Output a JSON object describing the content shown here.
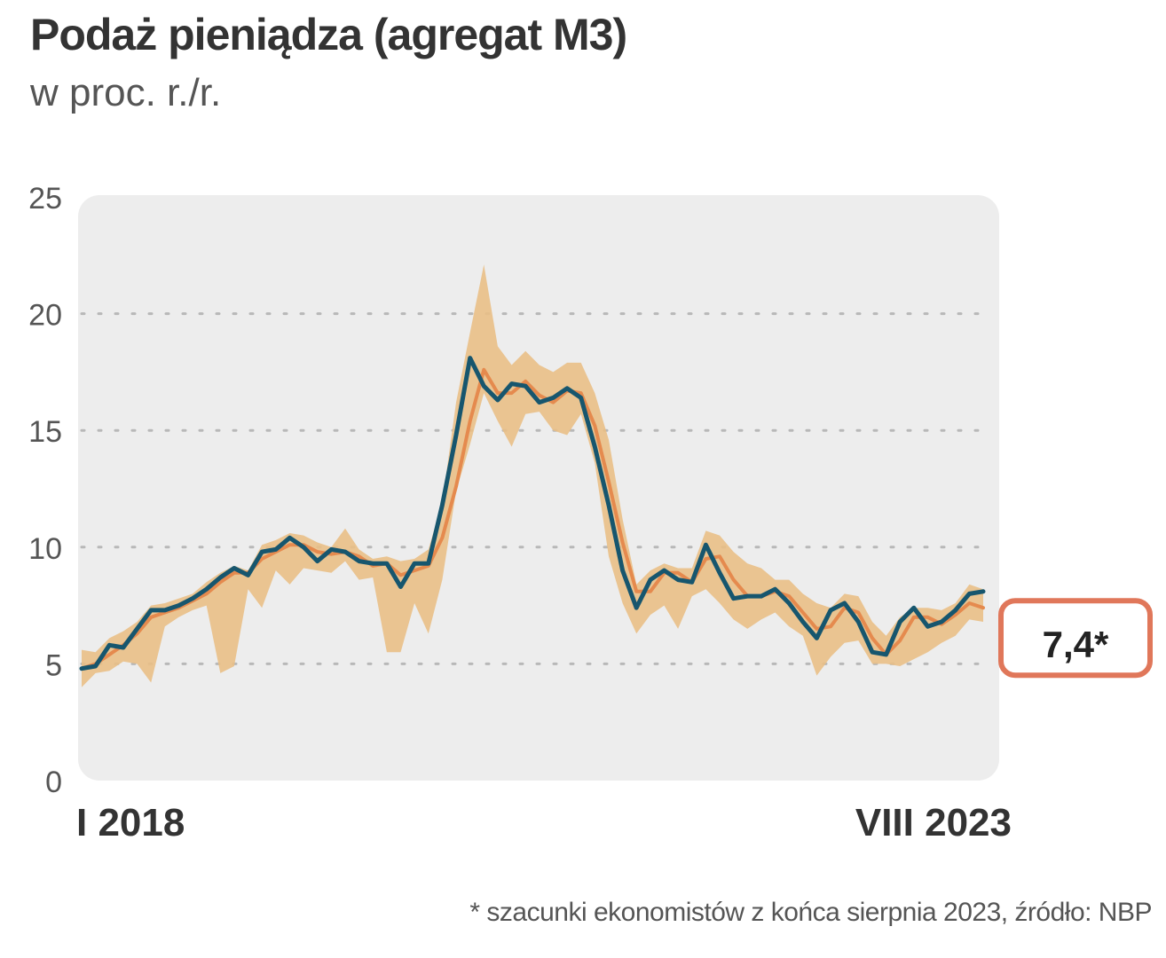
{
  "header": {
    "title": "Podaż pieniądza (agregat M3)",
    "subtitle": "w proc. r./r."
  },
  "footnote": "* szacunki ekonomistów z końca sierpnia 2023, źródło: NBP",
  "callout": {
    "label": "7,4*",
    "color": "#e0775a"
  },
  "colors": {
    "line": "#17566e",
    "median": "#e58a4e",
    "band": "#e9bf86",
    "plot_bg": "#ededed",
    "grid": "#b8b8b8"
  },
  "chart_data": {
    "type": "line",
    "title": "Podaż pieniądza (agregat M3)",
    "subtitle": "w proc. r./r.",
    "x_start": "I 2018",
    "x_end": "VIII 2023",
    "x_labels": [
      "I 2018",
      "VIII 2023"
    ],
    "yticks": [
      0,
      5,
      10,
      15,
      20,
      25
    ],
    "ylim": [
      0,
      25
    ],
    "grid": "dotted horizontal",
    "series": [
      {
        "role": "actual",
        "values": [
          4.8,
          4.9,
          5.8,
          5.7,
          6.5,
          7.3,
          7.3,
          7.5,
          7.8,
          8.2,
          8.7,
          9.1,
          8.8,
          9.8,
          9.9,
          10.4,
          10.0,
          9.4,
          9.9,
          9.8,
          9.4,
          9.3,
          9.3,
          8.3,
          9.3,
          9.3,
          11.8,
          14.8,
          18.1,
          16.9,
          16.3,
          17.0,
          16.9,
          16.2,
          16.4,
          16.8,
          16.4,
          14.3,
          11.8,
          9.0,
          7.4,
          8.6,
          9.0,
          8.6,
          8.5,
          10.1,
          8.9,
          7.8,
          7.9,
          7.9,
          8.2,
          7.6,
          6.8,
          6.1,
          7.3,
          7.6,
          6.8,
          5.5,
          5.4,
          6.8,
          7.4,
          6.6,
          6.8,
          7.3,
          8.0,
          8.1
        ]
      },
      {
        "role": "forecast_median",
        "values": [
          4.8,
          5.0,
          5.4,
          5.8,
          6.3,
          7.0,
          7.2,
          7.4,
          7.7,
          8.0,
          8.5,
          8.9,
          8.9,
          9.5,
          9.8,
          10.1,
          10.1,
          9.8,
          9.7,
          9.8,
          9.6,
          9.2,
          9.3,
          8.8,
          9.0,
          9.2,
          10.4,
          12.6,
          15.4,
          17.6,
          16.6,
          16.6,
          17.1,
          16.5,
          16.2,
          16.7,
          16.6,
          15.2,
          12.8,
          10.2,
          8.1,
          8.1,
          8.9,
          8.9,
          8.5,
          9.5,
          9.6,
          8.6,
          7.9,
          7.9,
          8.1,
          7.9,
          7.2,
          6.5,
          6.6,
          7.4,
          7.2,
          6.1,
          5.4,
          6.0,
          7.0,
          7.0,
          6.7,
          7.1,
          7.6,
          7.4
        ]
      },
      {
        "role": "forecast_min",
        "values": [
          4.0,
          4.6,
          4.7,
          5.1,
          5.0,
          4.2,
          6.6,
          7.0,
          7.3,
          7.5,
          4.6,
          4.9,
          8.2,
          7.4,
          9.0,
          8.4,
          9.1,
          9.0,
          8.9,
          9.4,
          8.6,
          8.7,
          5.5,
          5.5,
          7.6,
          6.3,
          8.6,
          12.4,
          14.4,
          16.6,
          15.4,
          14.3,
          15.7,
          15.8,
          15.0,
          14.8,
          15.7,
          13.6,
          9.6,
          7.6,
          6.3,
          7.1,
          7.5,
          6.5,
          7.9,
          8.2,
          7.6,
          6.9,
          6.5,
          6.9,
          7.2,
          6.6,
          6.2,
          4.5,
          5.3,
          5.9,
          6.0,
          5.0,
          5.0,
          4.9,
          5.2,
          5.5,
          5.9,
          6.2,
          6.9,
          6.8
        ]
      },
      {
        "role": "forecast_max",
        "values": [
          5.6,
          5.5,
          6.1,
          6.4,
          6.8,
          7.5,
          7.6,
          7.8,
          8.0,
          8.5,
          8.9,
          9.2,
          9.0,
          10.1,
          10.3,
          10.6,
          10.5,
          10.2,
          10.0,
          10.8,
          9.9,
          9.5,
          9.6,
          9.4,
          9.5,
          9.9,
          11.9,
          16.2,
          19.2,
          22.1,
          18.6,
          17.8,
          18.4,
          17.8,
          17.5,
          17.9,
          17.9,
          16.6,
          14.6,
          11.2,
          8.4,
          9.0,
          9.3,
          9.1,
          9.1,
          10.7,
          10.5,
          9.8,
          9.3,
          9.1,
          8.6,
          8.6,
          8.0,
          7.6,
          7.4,
          8.0,
          7.9,
          6.8,
          6.2,
          7.0,
          7.4,
          7.4,
          7.3,
          7.6,
          8.4,
          8.2
        ]
      }
    ],
    "annotation": {
      "value": 7.4,
      "label": "7,4*"
    }
  }
}
